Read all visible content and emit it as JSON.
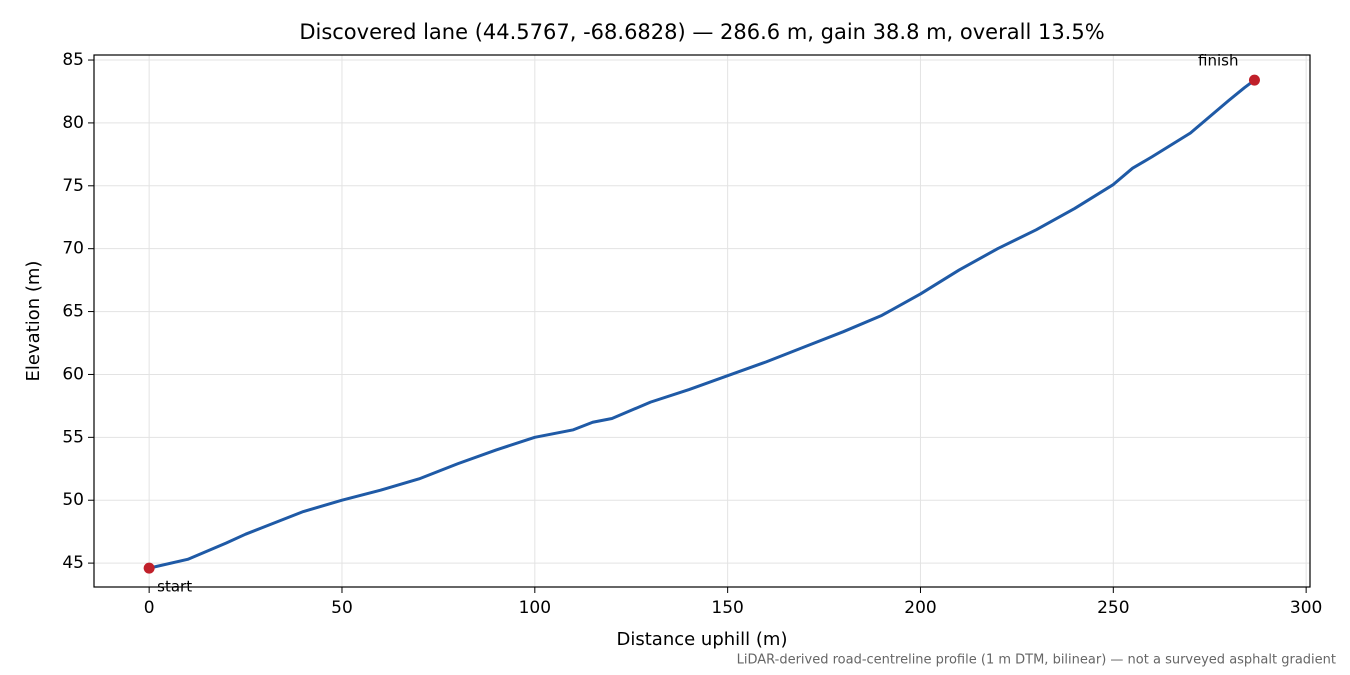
{
  "chart_data": {
    "type": "line",
    "title": "Discovered lane (44.5767, -68.6828) — 286.6 m, gain 38.8 m, overall 13.5%",
    "xlabel": "Distance uphill (m)",
    "ylabel": "Elevation (m)",
    "footnote": "LiDAR-derived road-centreline profile (1 m DTM, bilinear) — not a surveyed asphalt gradient",
    "x": [
      0,
      10,
      20,
      25,
      30,
      40,
      50,
      60,
      70,
      80,
      90,
      100,
      110,
      115,
      120,
      130,
      140,
      150,
      160,
      170,
      180,
      190,
      200,
      210,
      220,
      230,
      240,
      250,
      255,
      260,
      270,
      280,
      284,
      286.6
    ],
    "series": [
      {
        "color": "#1f5aa6",
        "values": [
          44.6,
          45.3,
          46.6,
          47.3,
          47.9,
          49.1,
          50.0,
          50.8,
          51.7,
          52.9,
          54.0,
          55.0,
          55.6,
          56.2,
          56.5,
          57.8,
          58.8,
          59.9,
          61.0,
          62.2,
          63.4,
          64.7,
          66.4,
          68.3,
          70.0,
          71.5,
          73.2,
          75.1,
          76.4,
          77.3,
          79.2,
          81.8,
          82.8,
          83.4
        ]
      }
    ],
    "markers": [
      {
        "label": "start",
        "x": 0,
        "y": 44.6,
        "color": "#c0202a"
      },
      {
        "label": "finish",
        "x": 286.6,
        "y": 83.4,
        "color": "#c0202a"
      }
    ],
    "xlim": [
      -14.3,
      301
    ],
    "ylim": [
      43.1,
      85.4
    ],
    "xticks": [
      0,
      50,
      100,
      150,
      200,
      250,
      300
    ],
    "yticks": [
      45,
      50,
      55,
      60,
      65,
      70,
      75,
      80,
      85
    ],
    "grid": true
  }
}
